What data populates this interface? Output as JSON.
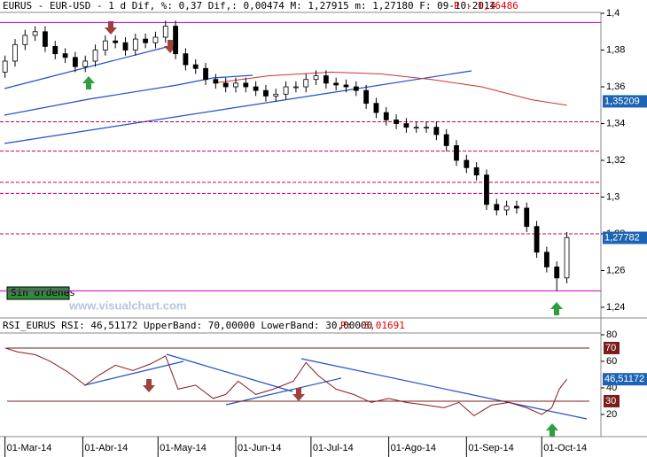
{
  "chart_data": [
    {
      "type": "candlestick",
      "title": "EURUS - EUR-USD - 1 d Dif, %: 0,37 Dif,: 0,00474 M: 1,27915 m: 1,27180 F: 09-10-2014",
      "p_text": "P : 1,16486",
      "x": [
        0,
        4,
        8,
        12,
        16,
        20,
        24,
        28,
        32,
        36,
        40,
        44,
        48,
        52,
        56,
        60,
        64,
        68,
        72,
        76,
        80,
        84,
        88,
        92,
        96,
        100,
        104,
        108,
        112,
        116,
        120,
        124,
        128,
        132,
        136,
        140,
        144,
        148,
        152,
        156,
        160,
        164,
        168,
        172,
        176,
        180,
        184,
        188,
        192,
        196,
        200,
        204,
        208,
        212,
        216,
        220,
        224
      ],
      "open": [
        1.368,
        1.374,
        1.383,
        1.388,
        1.39,
        1.382,
        1.378,
        1.376,
        1.371,
        1.374,
        1.38,
        1.385,
        1.384,
        1.38,
        1.386,
        1.384,
        1.387,
        1.393,
        1.378,
        1.372,
        1.37,
        1.364,
        1.362,
        1.36,
        1.362,
        1.36,
        1.358,
        1.355,
        1.356,
        1.36,
        1.36,
        1.364,
        1.366,
        1.362,
        1.361,
        1.36,
        1.358,
        1.351,
        1.346,
        1.342,
        1.34,
        1.338,
        1.338,
        1.338,
        1.334,
        1.328,
        1.32,
        1.316,
        1.312,
        1.296,
        1.293,
        1.295,
        1.294,
        1.284,
        1.27,
        1.262,
        1.256
      ],
      "high": [
        1.377,
        1.386,
        1.391,
        1.393,
        1.393,
        1.385,
        1.381,
        1.379,
        1.377,
        1.383,
        1.388,
        1.388,
        1.387,
        1.389,
        1.389,
        1.39,
        1.396,
        1.396,
        1.381,
        1.375,
        1.373,
        1.367,
        1.365,
        1.365,
        1.365,
        1.363,
        1.361,
        1.359,
        1.363,
        1.363,
        1.367,
        1.369,
        1.369,
        1.365,
        1.364,
        1.363,
        1.361,
        1.354,
        1.349,
        1.345,
        1.343,
        1.341,
        1.341,
        1.341,
        1.337,
        1.331,
        1.323,
        1.319,
        1.315,
        1.299,
        1.298,
        1.298,
        1.297,
        1.287,
        1.273,
        1.265,
        1.281
      ],
      "low": [
        1.365,
        1.371,
        1.38,
        1.385,
        1.379,
        1.375,
        1.373,
        1.368,
        1.368,
        1.371,
        1.377,
        1.381,
        1.377,
        1.377,
        1.381,
        1.381,
        1.384,
        1.375,
        1.369,
        1.367,
        1.361,
        1.359,
        1.357,
        1.357,
        1.357,
        1.355,
        1.352,
        1.352,
        1.353,
        1.357,
        1.357,
        1.361,
        1.359,
        1.358,
        1.357,
        1.355,
        1.348,
        1.343,
        1.339,
        1.337,
        1.335,
        1.335,
        1.335,
        1.331,
        1.325,
        1.317,
        1.313,
        1.309,
        1.293,
        1.29,
        1.29,
        1.291,
        1.281,
        1.267,
        1.259,
        1.249,
        1.253
      ],
      "close": [
        1.374,
        1.383,
        1.388,
        1.39,
        1.382,
        1.378,
        1.376,
        1.371,
        1.374,
        1.38,
        1.385,
        1.384,
        1.38,
        1.386,
        1.384,
        1.387,
        1.393,
        1.378,
        1.372,
        1.37,
        1.364,
        1.362,
        1.36,
        1.362,
        1.36,
        1.358,
        1.355,
        1.356,
        1.36,
        1.36,
        1.364,
        1.366,
        1.362,
        1.361,
        1.36,
        1.358,
        1.351,
        1.346,
        1.342,
        1.34,
        1.338,
        1.338,
        1.338,
        1.334,
        1.328,
        1.32,
        1.316,
        1.312,
        1.296,
        1.293,
        1.295,
        1.294,
        1.284,
        1.27,
        1.262,
        1.256,
        1.278
      ],
      "up_color": "#ffffff",
      "down_color": "#000000",
      "ma": {
        "color": "#d03030",
        "x": [
          83,
          105,
          130,
          150,
          170,
          190,
          210,
          224
        ],
        "values": [
          1.362,
          1.366,
          1.368,
          1.367,
          1.364,
          1.36,
          1.353,
          1.35
        ]
      },
      "xlim": [
        -2,
        237.6
      ],
      "ylim": [
        1.2347,
        1.4005
      ],
      "yticks": [
        {
          "value": 1.24,
          "label": "1,24"
        },
        {
          "value": 1.26,
          "label": "1,26"
        },
        {
          "value": 1.28,
          "label": "1,28"
        },
        {
          "value": 1.3,
          "label": "1,3"
        },
        {
          "value": 1.32,
          "label": "1,32"
        },
        {
          "value": 1.34,
          "label": "1,34"
        },
        {
          "value": 1.36,
          "label": "1,36"
        },
        {
          "value": 1.38,
          "label": "1,38"
        },
        {
          "value": 1.4,
          "label": "1,4"
        }
      ],
      "hlines": [
        {
          "value": 1.395,
          "color": "#c000c0",
          "dashed": false
        },
        {
          "value": 1.341,
          "color": "#c00060",
          "dashed": true
        },
        {
          "value": 1.325,
          "color": "#c00060",
          "dashed": true
        },
        {
          "value": 1.308,
          "color": "#c00060",
          "dashed": true
        },
        {
          "value": 1.302,
          "color": "#c00060",
          "dashed": true
        },
        {
          "value": 1.28,
          "color": "#c00060",
          "dashed": true
        },
        {
          "value": 1.249,
          "color": "#c000c0",
          "dashed": false
        }
      ],
      "price_tags": [
        {
          "value": 1.35209,
          "label": "1,35209"
        },
        {
          "value": 1.27782,
          "label": "1,27782"
        }
      ],
      "tag_color": "#1e64b4",
      "annotations": [
        "Sin ordenes",
        "www.visualchart.com"
      ]
    },
    {
      "type": "line",
      "title": "RSI_EURUS RSI: 46,51172 UpperBand: 70,00000 LowerBand: 30,00000",
      "p_text": "P: -3,01691",
      "x": [
        0,
        5,
        12,
        18,
        25,
        32,
        37,
        44,
        51,
        58,
        64,
        69,
        76,
        83,
        88,
        93,
        100,
        107,
        115,
        120,
        125,
        132,
        139,
        146,
        153,
        160,
        168,
        175,
        181,
        187,
        194,
        201,
        208,
        214,
        218,
        221,
        224
      ],
      "values": [
        70,
        67,
        65,
        60,
        52,
        42,
        49,
        57,
        53,
        58,
        64,
        39,
        42,
        32,
        35,
        45,
        35,
        39,
        45,
        59,
        49,
        39,
        35,
        29,
        32,
        29,
        27,
        25,
        29,
        19,
        27,
        29,
        25,
        20,
        25,
        39,
        46.5
      ],
      "color": "#8b1a1a",
      "xlim": [
        -2,
        237.6
      ],
      "ylim": [
        3.3,
        81.3
      ],
      "yticks": [
        20,
        40,
        60,
        80
      ],
      "bands": [
        {
          "value": 70,
          "label": "70"
        },
        {
          "value": 30,
          "label": "30"
        }
      ],
      "band_color": "#7a1c1c",
      "tag": {
        "value": 46.51172,
        "label": "46,51172"
      },
      "tag_color": "#1e64b4",
      "xticks": [
        {
          "value": 0,
          "label": "01-Mar-14"
        },
        {
          "value": 31,
          "label": "01-Abr-14"
        },
        {
          "value": 61,
          "label": "01-May-14"
        },
        {
          "value": 92,
          "label": "01-Jun-14"
        },
        {
          "value": 122,
          "label": "01-Jul-14"
        },
        {
          "value": 153,
          "label": "01-Ago-14"
        },
        {
          "value": 184,
          "label": "01-Sep-14"
        },
        {
          "value": 214,
          "label": "01-Oct-14"
        }
      ]
    }
  ]
}
